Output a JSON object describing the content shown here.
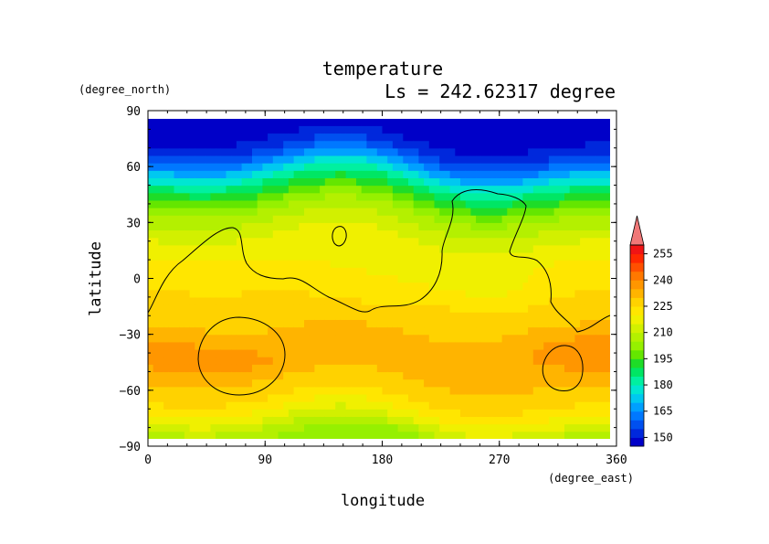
{
  "chart_data": {
    "type": "heatmap",
    "title": "temperature",
    "subtitle": "Ls = 242.62317 degree",
    "xlabel": "longitude",
    "ylabel": "latitude",
    "xunit": "(degree_east)",
    "yunit": "(degree_north)",
    "xlim": [
      0,
      360
    ],
    "ylim": [
      -90,
      90
    ],
    "x_ticks": [
      "0",
      "90",
      "180",
      "270",
      "360"
    ],
    "y_ticks": [
      "90",
      "60",
      "30",
      "0",
      "−30",
      "−60",
      "−90"
    ],
    "colorbar": {
      "labels": [
        "255",
        "240",
        "225",
        "210",
        "195",
        "180",
        "165",
        "150"
      ],
      "levels": [
        145,
        150,
        155,
        160,
        165,
        170,
        175,
        180,
        185,
        190,
        195,
        200,
        205,
        210,
        215,
        220,
        225,
        230,
        235,
        240,
        245,
        250,
        255,
        260
      ],
      "colors": [
        "#0000c8",
        "#0028dc",
        "#0050f0",
        "#0078ff",
        "#00a0ff",
        "#00c8f0",
        "#00e6d2",
        "#00f0a0",
        "#00e664",
        "#1edc28",
        "#64e600",
        "#96f000",
        "#b4f000",
        "#d2f000",
        "#f0f000",
        "#ffe600",
        "#ffd200",
        "#ffb400",
        "#ff9600",
        "#ff7800",
        "#ff5000",
        "#ff2800",
        "#f01414"
      ],
      "over_color": "#f07878"
    },
    "lat_profile": {
      "lat": [
        -90,
        -85,
        -80,
        -75,
        -70,
        -65,
        -60,
        -55,
        -50,
        -45,
        -40,
        -35,
        -30,
        -25,
        -20,
        -15,
        -10,
        -5,
        0,
        5,
        10,
        15,
        20,
        25,
        30,
        35,
        40,
        45,
        50,
        55,
        60,
        65,
        70,
        75,
        80,
        85,
        90
      ],
      "temp": [
        204,
        206,
        212,
        218,
        222,
        226,
        228,
        230,
        232,
        233,
        233,
        232,
        230,
        229,
        228,
        228,
        227,
        225,
        223,
        222,
        221,
        219,
        216,
        213,
        209,
        205,
        199,
        192,
        185,
        176,
        166,
        158,
        152,
        149,
        148,
        147,
        147
      ]
    },
    "contour_approx": "zero-elevation contour lines (black) drawn over the field"
  }
}
